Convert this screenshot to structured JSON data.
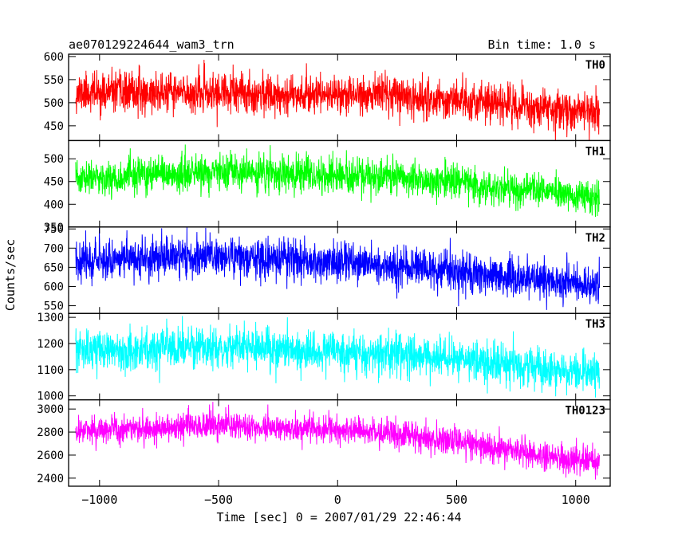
{
  "chart_data": {
    "type": "line",
    "title": "ae070129224644_wam3_trn",
    "bin_time_label": "Bin time: 1.0 s",
    "ylabel": "Counts/sec",
    "xlabel": "Time [sec] 0 = 2007/01/29 22:46:44",
    "xlim": [
      -1130,
      1145
    ],
    "xticks": [
      -1000,
      -500,
      0,
      500,
      1000
    ],
    "xtick_labels": [
      "−1000",
      "−500",
      "0",
      "500",
      "1000"
    ],
    "grid": false,
    "data_range": [
      -1100,
      1100
    ],
    "panels": [
      {
        "name": "TH0",
        "color": "#ff0000",
        "ylim": [
          418,
          605
        ],
        "yticks": [
          450,
          500,
          550,
          600
        ],
        "trend": [
          {
            "x": -1100,
            "y": 522
          },
          {
            "x": 200,
            "y": 518
          },
          {
            "x": 1100,
            "y": 478
          }
        ],
        "noise_sd": 21,
        "seed": 11
      },
      {
        "name": "TH1",
        "color": "#00ff00",
        "ylim": [
          350,
          540
        ],
        "yticks": [
          350,
          400,
          450,
          500
        ],
        "trend": [
          {
            "x": -1100,
            "y": 455
          },
          {
            "x": -500,
            "y": 470
          },
          {
            "x": 200,
            "y": 460
          },
          {
            "x": 1100,
            "y": 415
          }
        ],
        "noise_sd": 19,
        "seed": 23
      },
      {
        "name": "TH2",
        "color": "#0000ff",
        "ylim": [
          530,
          755
        ],
        "yticks": [
          550,
          600,
          650,
          700,
          750
        ],
        "trend": [
          {
            "x": -1100,
            "y": 670
          },
          {
            "x": -500,
            "y": 680
          },
          {
            "x": 200,
            "y": 655
          },
          {
            "x": 1100,
            "y": 600
          }
        ],
        "noise_sd": 26,
        "seed": 37
      },
      {
        "name": "TH3",
        "color": "#00ffff",
        "ylim": [
          985,
          1315
        ],
        "yticks": [
          1000,
          1100,
          1200,
          1300
        ],
        "trend": [
          {
            "x": -1100,
            "y": 1170
          },
          {
            "x": -500,
            "y": 1185
          },
          {
            "x": 200,
            "y": 1165
          },
          {
            "x": 1100,
            "y": 1085
          }
        ],
        "noise_sd": 38,
        "seed": 53
      },
      {
        "name": "TH0123",
        "color": "#ff00ff",
        "ylim": [
          2330,
          3080
        ],
        "yticks": [
          2400,
          2600,
          2800,
          3000
        ],
        "trend": [
          {
            "x": -1100,
            "y": 2810
          },
          {
            "x": -500,
            "y": 2860
          },
          {
            "x": 200,
            "y": 2800
          },
          {
            "x": 1100,
            "y": 2530
          }
        ],
        "noise_sd": 60,
        "seed": 71
      }
    ]
  }
}
